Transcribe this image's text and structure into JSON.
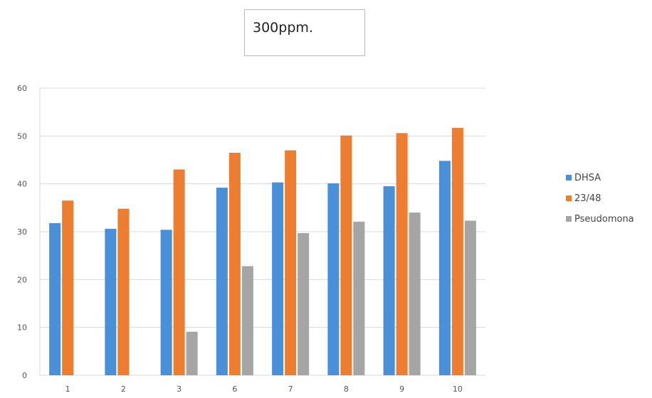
{
  "chart_data": {
    "type": "bar",
    "title": "300ppm.",
    "xlabel": "",
    "ylabel": "",
    "categories": [
      "1",
      "2",
      "3",
      "6",
      "7",
      "8",
      "9",
      "10"
    ],
    "series": [
      {
        "name": "DHSA",
        "color": "#4a90d9",
        "values": [
          31.8,
          30.6,
          30.4,
          39.2,
          40.3,
          40.1,
          39.5,
          44.8
        ]
      },
      {
        "name": "23/48",
        "color": "#ed7d31",
        "values": [
          36.5,
          34.8,
          43.0,
          46.5,
          47.0,
          50.1,
          50.6,
          51.7
        ]
      },
      {
        "name": "Pseudomona",
        "color": "#a5a5a5",
        "values": [
          0,
          0,
          9.1,
          22.8,
          29.7,
          32.1,
          34.0,
          32.3
        ]
      }
    ],
    "ylim": [
      0,
      60
    ],
    "yticks": [
      0,
      10,
      20,
      30,
      40,
      50,
      60
    ],
    "grid": true,
    "legend": "right"
  }
}
